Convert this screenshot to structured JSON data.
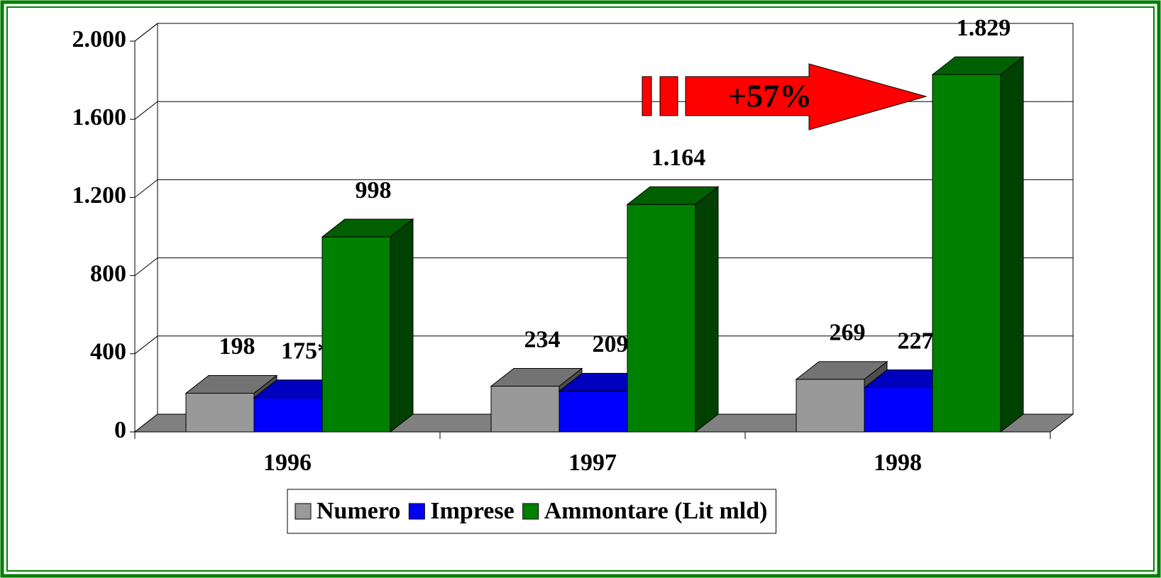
{
  "chart_data": {
    "type": "bar",
    "annotation": "+57%",
    "categories": [
      "1996",
      "1997",
      "1998"
    ],
    "series": [
      {
        "name": "Numero",
        "color": "#999999",
        "values": [
          198,
          234,
          269
        ]
      },
      {
        "name": "Imprese",
        "color": "#0000ff",
        "values": [
          175,
          209,
          227
        ],
        "value_labels": [
          "175*",
          "209",
          "227"
        ]
      },
      {
        "name": "Ammontare (Lit mld)",
        "color": "#008000",
        "values": [
          998,
          1164,
          1829
        ],
        "value_labels": [
          "998",
          "1.164",
          "1.829"
        ]
      }
    ],
    "ylim": [
      0,
      2000
    ],
    "yticks": [
      0,
      400,
      800,
      {
        "value": 1200,
        "label": "1.200"
      },
      {
        "value": 1600,
        "label": "1.600"
      },
      {
        "value": 2000,
        "label": "2.000"
      }
    ],
    "grid": true,
    "legend": "bottom"
  }
}
